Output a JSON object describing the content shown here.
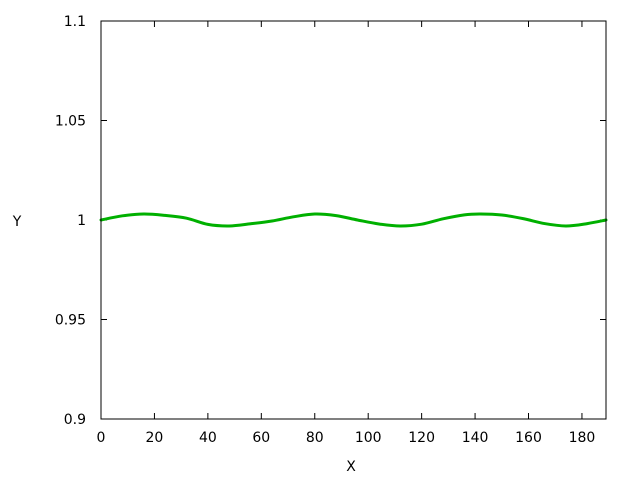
{
  "chart_data": {
    "type": "line",
    "title": "",
    "xlabel": "X",
    "ylabel": "Y",
    "xlim": [
      0,
      189
    ],
    "ylim": [
      0.9,
      1.1
    ],
    "x_ticks": [
      0,
      20,
      40,
      60,
      80,
      100,
      120,
      140,
      160,
      180
    ],
    "x_tick_labels": [
      "0",
      "20",
      "40",
      "60",
      "80",
      "100",
      "120",
      "140",
      "160",
      "180"
    ],
    "y_ticks": [
      0.9,
      0.95,
      1.0,
      1.05,
      1.1
    ],
    "y_tick_labels": [
      "0.9",
      "0.95",
      "1",
      "1.05",
      "1.1"
    ],
    "grid": false,
    "legend": "none",
    "series": [
      {
        "color": "#00b000",
        "x": [
          0,
          8,
          16,
          24,
          32,
          40,
          48,
          56,
          64,
          72,
          80,
          88,
          96,
          104,
          112,
          120,
          128,
          136,
          142,
          150,
          158,
          166,
          174,
          182,
          189
        ],
        "y": [
          1.0,
          1.0021,
          1.003,
          1.0023,
          1.0009,
          0.9978,
          0.997,
          0.9981,
          0.9995,
          1.0016,
          1.003,
          1.0022,
          1.0,
          0.998,
          0.997,
          0.9979,
          1.0006,
          1.0026,
          1.003,
          1.0025,
          1.0007,
          0.9982,
          0.997,
          0.9982,
          1.0
        ]
      }
    ]
  }
}
